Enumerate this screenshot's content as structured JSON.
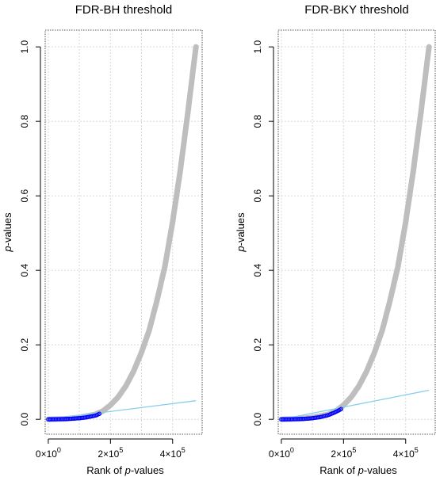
{
  "chart_data": [
    {
      "type": "scatter",
      "title": "FDR-BH threshold",
      "xlabel_prefix": "Rank of ",
      "xlabel_italic": "p",
      "xlabel_suffix": "-values",
      "ylabel_italic": "p",
      "ylabel_suffix": "-values",
      "xlim": [
        0,
        480000
      ],
      "ylim": [
        0,
        1
      ],
      "grid": true,
      "x_ticks": [
        {
          "value": 0,
          "base": "0×10",
          "exp": "0"
        },
        {
          "value": 200000,
          "base": "2×10",
          "exp": "5"
        },
        {
          "value": 400000,
          "base": "4×10",
          "exp": "5"
        }
      ],
      "y_ticks": [
        {
          "value": 0.0,
          "label": "0.0"
        },
        {
          "value": 0.2,
          "label": "0.2"
        },
        {
          "value": 0.4,
          "label": "0.4"
        },
        {
          "value": 0.6,
          "label": "0.6"
        },
        {
          "value": 0.8,
          "label": "0.8"
        },
        {
          "value": 1.0,
          "label": "1.0"
        }
      ],
      "threshold_line": {
        "x": [
          0,
          475000
        ],
        "y": [
          0,
          0.05
        ],
        "color": "#87ceeb"
      },
      "series": [
        {
          "color": "#bebebe",
          "x": [
            0,
            50000,
            100000,
            150000,
            175000,
            200000,
            225000,
            250000,
            275000,
            300000,
            325000,
            350000,
            375000,
            400000,
            425000,
            450000,
            475000
          ],
          "y": [
            0,
            0.001,
            0.005,
            0.013,
            0.022,
            0.038,
            0.06,
            0.09,
            0.13,
            0.18,
            0.24,
            0.32,
            0.41,
            0.53,
            0.67,
            0.83,
            1.0
          ]
        },
        {
          "color": "#0000ff",
          "x": [
            0,
            20000,
            40000,
            60000,
            80000,
            100000,
            120000,
            140000,
            155000,
            165000
          ],
          "y": [
            0,
            0.0002,
            0.0005,
            0.001,
            0.0018,
            0.003,
            0.005,
            0.008,
            0.011,
            0.015
          ]
        }
      ]
    },
    {
      "type": "scatter",
      "title": "FDR-BKY threshold",
      "xlabel_prefix": "Rank of ",
      "xlabel_italic": "p",
      "xlabel_suffix": "-values",
      "ylabel_italic": "p",
      "ylabel_suffix": "-values",
      "xlim": [
        0,
        480000
      ],
      "ylim": [
        0,
        1
      ],
      "grid": true,
      "x_ticks": [
        {
          "value": 0,
          "base": "0×10",
          "exp": "0"
        },
        {
          "value": 200000,
          "base": "2×10",
          "exp": "5"
        },
        {
          "value": 400000,
          "base": "4×10",
          "exp": "5"
        }
      ],
      "y_ticks": [
        {
          "value": 0.0,
          "label": "0.0"
        },
        {
          "value": 0.2,
          "label": "0.2"
        },
        {
          "value": 0.4,
          "label": "0.4"
        },
        {
          "value": 0.6,
          "label": "0.6"
        },
        {
          "value": 0.8,
          "label": "0.8"
        },
        {
          "value": 1.0,
          "label": "1.0"
        }
      ],
      "threshold_line": {
        "x": [
          0,
          475000
        ],
        "y": [
          0,
          0.078
        ],
        "color": "#87ceeb"
      },
      "series": [
        {
          "color": "#bebebe",
          "x": [
            0,
            50000,
            100000,
            150000,
            175000,
            200000,
            225000,
            250000,
            275000,
            300000,
            325000,
            350000,
            375000,
            400000,
            425000,
            450000,
            475000
          ],
          "y": [
            0,
            0.001,
            0.005,
            0.013,
            0.022,
            0.038,
            0.06,
            0.09,
            0.13,
            0.18,
            0.24,
            0.32,
            0.41,
            0.53,
            0.67,
            0.83,
            1.0
          ]
        },
        {
          "color": "#0000ff",
          "x": [
            0,
            25000,
            50000,
            75000,
            100000,
            125000,
            150000,
            170000,
            185000,
            193000
          ],
          "y": [
            0,
            0.0002,
            0.0006,
            0.0013,
            0.003,
            0.006,
            0.011,
            0.018,
            0.024,
            0.028
          ]
        }
      ]
    }
  ]
}
